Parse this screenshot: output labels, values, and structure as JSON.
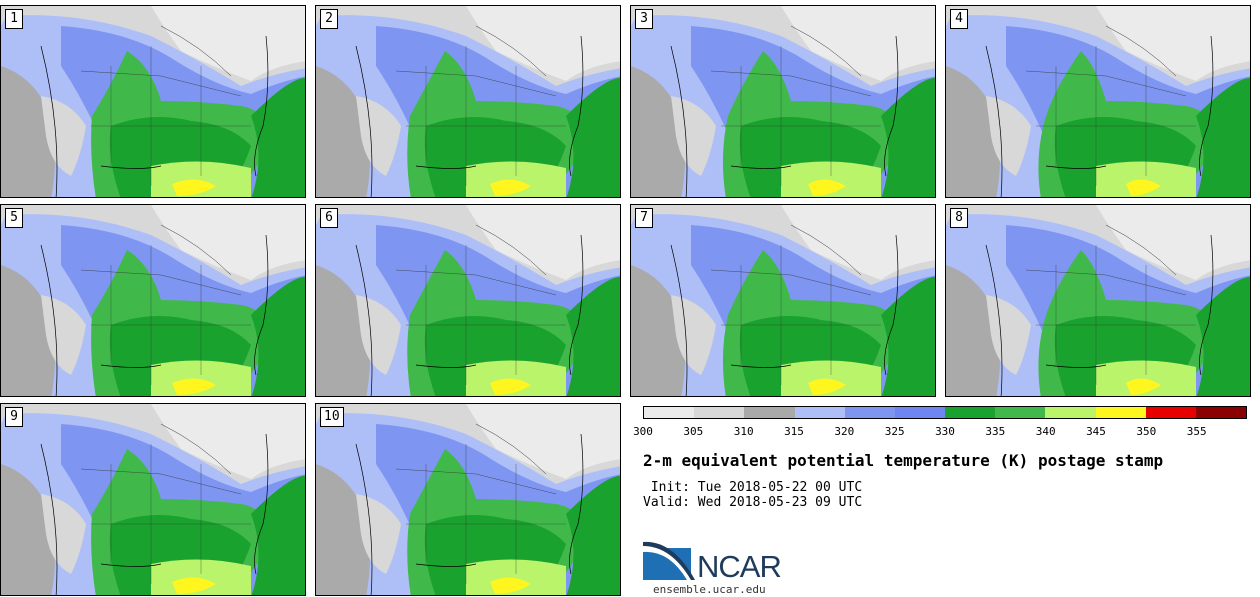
{
  "panels": [
    {
      "label": "1"
    },
    {
      "label": "2"
    },
    {
      "label": "3"
    },
    {
      "label": "4"
    },
    {
      "label": "5"
    },
    {
      "label": "6"
    },
    {
      "label": "7"
    },
    {
      "label": "8"
    },
    {
      "label": "9"
    },
    {
      "label": "10"
    }
  ],
  "colorbar": {
    "colors": [
      "#ebebeb",
      "#d8d8d8",
      "#a9a9a9",
      "#aebff8",
      "#7e96f2",
      "#6e86f0",
      "#1aa22e",
      "#40b94a",
      "#b9f46b",
      "#fff51f",
      "#e60000",
      "#8b0000"
    ],
    "ticks": [
      "300",
      "305",
      "310",
      "315",
      "320",
      "325",
      "330",
      "335",
      "340",
      "345",
      "350",
      "355"
    ]
  },
  "title": "2-m equivalent potential temperature (K) postage stamp",
  "init_line": " Init: Tue 2018-05-22 00 UTC",
  "valid_line": "Valid: Wed 2018-05-23 09 UTC",
  "logo": {
    "word": "NCAR",
    "url": "ensemble.ucar.edu"
  },
  "map_colors": {
    "background": "#aaaaaa",
    "cold_white": "#ebebeb",
    "cool_gray": "#d8d8d8",
    "light_blue": "#aebff8",
    "blue": "#7e96f2",
    "green": "#1aa22e",
    "mid_green": "#40b94a",
    "light_green": "#b9f46b",
    "yellow": "#fff51f"
  }
}
